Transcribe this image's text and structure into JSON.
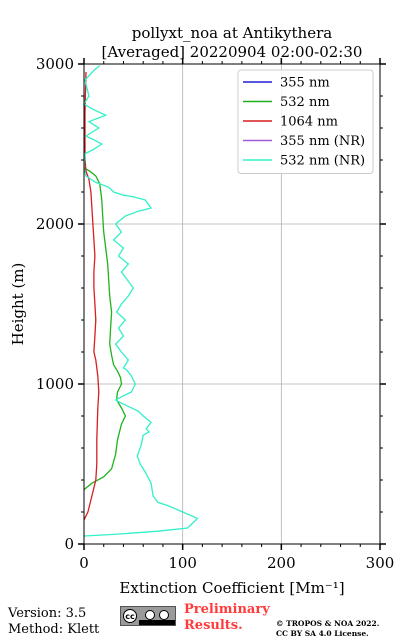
{
  "chart_data": {
    "type": "line",
    "title": "pollyxt_noa at Antikythera",
    "subtitle": "[Averaged] 20220904 02:00-02:30",
    "xlabel": "Extinction Coefficient [Mm⁻¹]",
    "ylabel": "Height (m)",
    "xlim": [
      0,
      300
    ],
    "ylim": [
      0,
      3000
    ],
    "xticks": [
      "0",
      "100",
      "200",
      "300"
    ],
    "yticks": [
      "0",
      "1000",
      "2000",
      "3000"
    ],
    "grid": true,
    "legend_position": "top-right",
    "series": [
      {
        "name": "355 nm",
        "color": "#1f1fd6",
        "points": []
      },
      {
        "name": "532 nm",
        "color": "#1fb21f",
        "points": [
          [
            0,
            340
          ],
          [
            8,
            380
          ],
          [
            20,
            420
          ],
          [
            28,
            470
          ],
          [
            32,
            560
          ],
          [
            34,
            650
          ],
          [
            38,
            750
          ],
          [
            42,
            800
          ],
          [
            38,
            850
          ],
          [
            33,
            900
          ],
          [
            34,
            950
          ],
          [
            38,
            1000
          ],
          [
            37,
            1040
          ],
          [
            34,
            1080
          ],
          [
            30,
            1120
          ],
          [
            28,
            1180
          ],
          [
            26,
            1250
          ],
          [
            27,
            1350
          ],
          [
            28,
            1450
          ],
          [
            26,
            1550
          ],
          [
            25,
            1650
          ],
          [
            24,
            1750
          ],
          [
            22,
            1850
          ],
          [
            20,
            1950
          ],
          [
            19,
            2050
          ],
          [
            18,
            2150
          ],
          [
            16,
            2250
          ],
          [
            12,
            2300
          ],
          [
            6,
            2330
          ],
          [
            0,
            2350
          ]
        ]
      },
      {
        "name": "1064 nm",
        "color": "#d61f1f",
        "points": [
          [
            0,
            150
          ],
          [
            4,
            200
          ],
          [
            8,
            300
          ],
          [
            12,
            400
          ],
          [
            13,
            500
          ],
          [
            13,
            650
          ],
          [
            14,
            850
          ],
          [
            15,
            950
          ],
          [
            14,
            1050
          ],
          [
            12,
            1150
          ],
          [
            10,
            1200
          ],
          [
            11,
            1300
          ],
          [
            12,
            1400
          ],
          [
            11,
            1500
          ],
          [
            10,
            1600
          ],
          [
            10,
            1700
          ],
          [
            11,
            1800
          ],
          [
            10,
            1900
          ],
          [
            9,
            2000
          ],
          [
            8,
            2100
          ],
          [
            7,
            2200
          ],
          [
            5,
            2280
          ],
          [
            2,
            2330
          ],
          [
            1,
            2400
          ],
          [
            1,
            2700
          ],
          [
            2,
            2950
          ]
        ]
      },
      {
        "name": "355 nm (NR)",
        "color": "#a05cd6",
        "points": []
      },
      {
        "name": "532 nm (NR)",
        "color": "#33f0c8",
        "points": [
          [
            0,
            50
          ],
          [
            30,
            60
          ],
          [
            75,
            80
          ],
          [
            105,
            100
          ],
          [
            115,
            160
          ],
          [
            100,
            200
          ],
          [
            85,
            240
          ],
          [
            75,
            260
          ],
          [
            70,
            300
          ],
          [
            68,
            380
          ],
          [
            62,
            450
          ],
          [
            57,
            500
          ],
          [
            54,
            550
          ],
          [
            58,
            620
          ],
          [
            60,
            680
          ],
          [
            66,
            700
          ],
          [
            63,
            720
          ],
          [
            68,
            760
          ],
          [
            60,
            800
          ],
          [
            55,
            830
          ],
          [
            45,
            860
          ],
          [
            38,
            880
          ],
          [
            32,
            900
          ],
          [
            38,
            920
          ],
          [
            48,
            950
          ],
          [
            52,
            1000
          ],
          [
            48,
            1050
          ],
          [
            43,
            1090
          ],
          [
            40,
            1100
          ],
          [
            45,
            1150
          ],
          [
            38,
            1200
          ],
          [
            32,
            1250
          ],
          [
            40,
            1300
          ],
          [
            35,
            1350
          ],
          [
            42,
            1400
          ],
          [
            33,
            1450
          ],
          [
            38,
            1500
          ],
          [
            45,
            1550
          ],
          [
            50,
            1600
          ],
          [
            44,
            1650
          ],
          [
            38,
            1700
          ],
          [
            45,
            1750
          ],
          [
            35,
            1800
          ],
          [
            40,
            1850
          ],
          [
            30,
            1900
          ],
          [
            38,
            1950
          ],
          [
            32,
            2000
          ],
          [
            42,
            2050
          ],
          [
            55,
            2080
          ],
          [
            68,
            2100
          ],
          [
            62,
            2150
          ],
          [
            50,
            2170
          ],
          [
            40,
            2180
          ],
          [
            30,
            2200
          ],
          [
            25,
            2230
          ],
          [
            12,
            2260
          ],
          [
            2,
            2300
          ],
          [
            0,
            2350
          ],
          [
            1,
            2440
          ],
          [
            8,
            2460
          ],
          [
            18,
            2500
          ],
          [
            12,
            2520
          ],
          [
            2,
            2550
          ],
          [
            15,
            2600
          ],
          [
            5,
            2640
          ],
          [
            22,
            2680
          ],
          [
            8,
            2720
          ],
          [
            0,
            2750
          ],
          [
            5,
            2800
          ],
          [
            1,
            2900
          ],
          [
            10,
            2960
          ],
          [
            16,
            2990
          ]
        ]
      }
    ]
  },
  "footer": {
    "version": "Version: 3.5",
    "method": "Method: Klett",
    "preliminary_line1": "Preliminary",
    "preliminary_line2": "Results.",
    "copyright_line1": "© TROPOS & NOA 2022.",
    "copyright_line2": "CC BY SA 4.0 License."
  }
}
